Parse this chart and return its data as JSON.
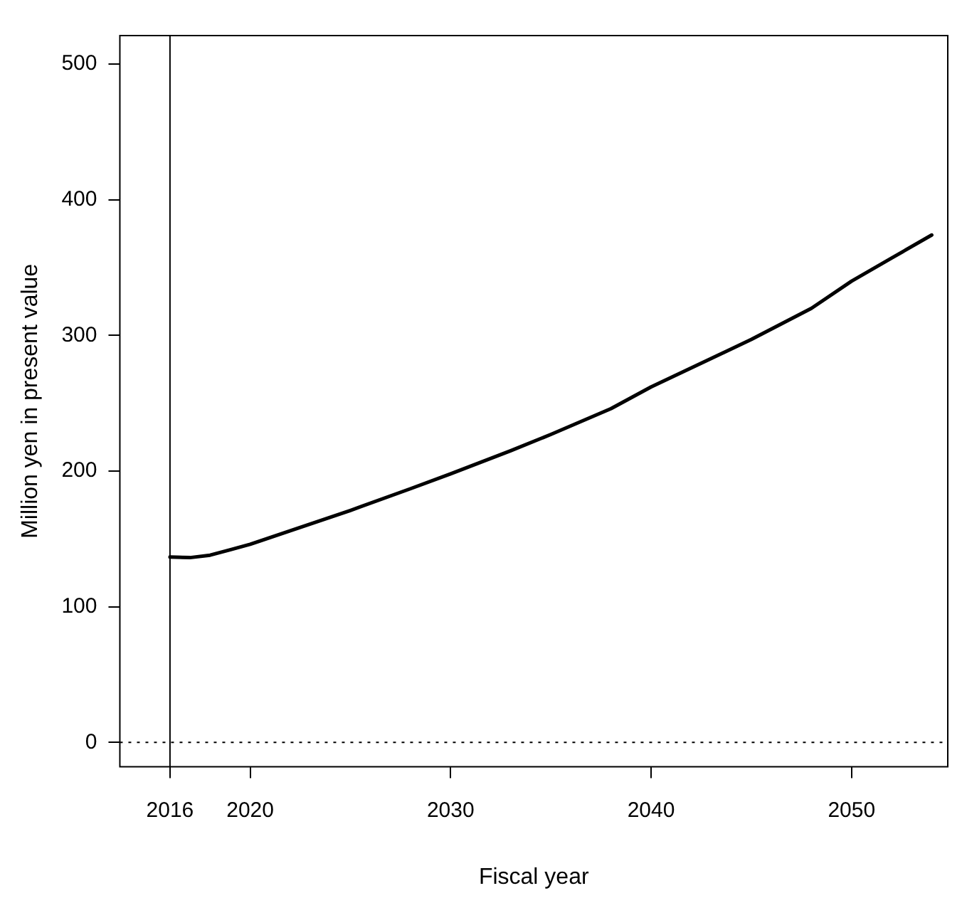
{
  "chart_data": {
    "type": "line",
    "xlabel": "Fiscal year",
    "ylabel": "Million yen in present value",
    "x": [
      2016,
      2017,
      2018,
      2019,
      2020,
      2022,
      2025,
      2028,
      2030,
      2033,
      2035,
      2038,
      2040,
      2043,
      2045,
      2048,
      2050,
      2052,
      2054
    ],
    "series": [
      {
        "color": "#000000",
        "values": [
          136.6,
          136.2,
          138,
          142,
          146,
          156,
          171,
          187,
          198,
          215,
          227,
          246,
          262,
          283,
          297,
          320,
          340,
          357,
          374
        ]
      }
    ],
    "xlim": [
      2013.5,
      2054.8
    ],
    "xticks": [
      2016,
      2020,
      2030,
      2040,
      2050
    ],
    "ylim": [
      -18,
      521
    ],
    "yticks": [
      0,
      100,
      200,
      300,
      400,
      500
    ],
    "ref_lines": [
      {
        "axis": "x",
        "value": 2016,
        "color": "#000000"
      },
      {
        "axis": "y",
        "value": 0,
        "line_style": "dotted",
        "color": "#000000"
      }
    ],
    "grid": false,
    "legend": false,
    "marker": "none",
    "line_style": "solid"
  }
}
